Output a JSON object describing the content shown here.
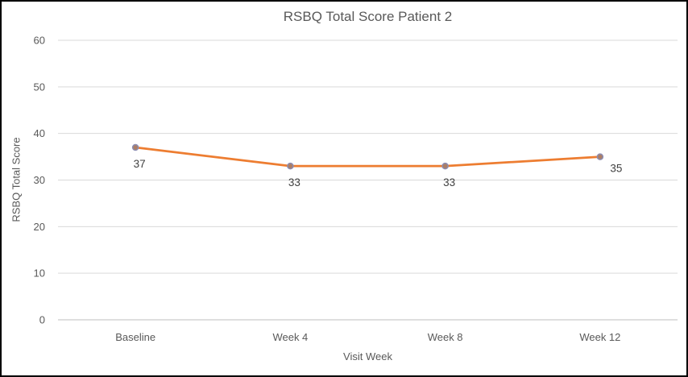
{
  "chart_data": {
    "type": "line",
    "title": "RSBQ Total Score Patient 2",
    "xlabel": "Visit Week",
    "ylabel": "RSBQ Total Score",
    "categories": [
      "Baseline",
      "Week 4",
      "Week 8",
      "Week 12"
    ],
    "series": [
      {
        "name": "RSBQ Total Score",
        "values": [
          37,
          33,
          33,
          35
        ]
      }
    ],
    "data_labels": [
      "37",
      "33",
      "33",
      "35"
    ],
    "label_positions": [
      "below",
      "below",
      "below",
      "right"
    ],
    "ylim": [
      0,
      60
    ],
    "ytick_step": 10,
    "yticks": [
      0,
      10,
      20,
      30,
      40,
      50,
      60
    ],
    "grid": true,
    "legend": false,
    "colors": {
      "line": "#ED7D31",
      "marker_fill": "#AC7E64",
      "marker_stroke": "#8C8CB0",
      "gridline": "#D9D9D9",
      "axis_line": "#BFBFBF",
      "axis_text": "#595959",
      "data_label_text": "#404040",
      "frame_border": "#000000",
      "background": "#FFFFFF"
    }
  }
}
